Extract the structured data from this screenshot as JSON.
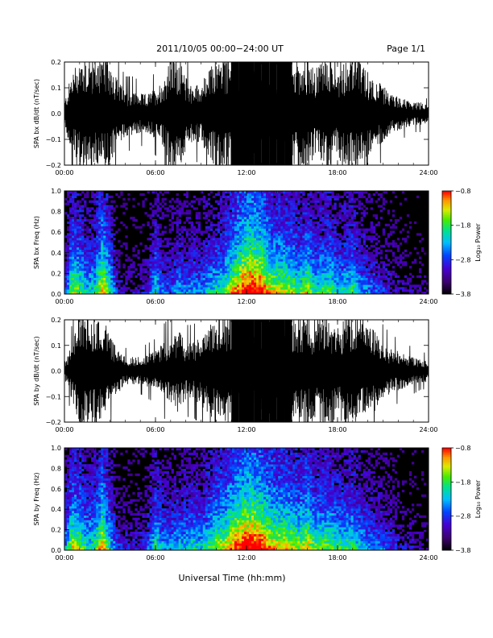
{
  "header": {
    "title": "2011/10/05   00:00−24:00  UT",
    "page": "Page 1/1"
  },
  "xlabel": "Universal Time (hh:mm)",
  "colorbar_label": "Log₁₀ Power",
  "chart_data": [
    {
      "type": "line",
      "ylabel": "SPA bx dB/dt (nT/sec)",
      "xlim": [
        0,
        24
      ],
      "ylim": [
        -0.2,
        0.2
      ],
      "x_tick_labels": [
        "00:00",
        "06:00",
        "12:00",
        "18:00",
        "24:00"
      ],
      "y_tick_labels": [
        "−0.2",
        "−0.1",
        "0.0",
        "0.1",
        "0.2"
      ],
      "envelope": {
        "hour": [
          0,
          0.5,
          1,
          1.5,
          2,
          2.5,
          3,
          3.5,
          4,
          4.5,
          5,
          5.5,
          6,
          6.5,
          7,
          7.5,
          8,
          8.5,
          9,
          9.5,
          10,
          10.5,
          11,
          11.5,
          12,
          12.5,
          13,
          13.5,
          14,
          14.5,
          15,
          15.5,
          16,
          16.5,
          17,
          17.5,
          18,
          18.5,
          19,
          19.5,
          20,
          20.5,
          21,
          21.5,
          22,
          22.5,
          23,
          23.5,
          24
        ],
        "amplitude": [
          0.04,
          0.15,
          0.2,
          0.2,
          0.2,
          0.2,
          0.2,
          0.12,
          0.08,
          0.08,
          0.07,
          0.07,
          0.09,
          0.12,
          0.2,
          0.2,
          0.13,
          0.1,
          0.11,
          0.15,
          0.2,
          0.2,
          0.2,
          0.2,
          0.2,
          0.2,
          0.2,
          0.2,
          0.2,
          0.2,
          0.2,
          0.2,
          0.2,
          0.15,
          0.2,
          0.2,
          0.15,
          0.2,
          0.2,
          0.18,
          0.15,
          0.12,
          0.1,
          0.07,
          0.06,
          0.05,
          0.04,
          0.04,
          0.03
        ]
      }
    },
    {
      "type": "heatmap",
      "ylabel": "SPA bx Freq (Hz)",
      "xlim": [
        0,
        24
      ],
      "ylim": [
        0,
        1.0
      ],
      "x_tick_labels": [
        "00:00",
        "06:00",
        "12:00",
        "18:00",
        "24:00"
      ],
      "y_tick_labels": [
        "0.0",
        "0.2",
        "0.4",
        "0.6",
        "0.8",
        "1.0"
      ],
      "colorbar": {
        "min": -3.8,
        "max": -0.8,
        "tick_labels": [
          "−3.8",
          "−2.8",
          "−1.8",
          "−0.8"
        ]
      },
      "activity": {
        "hour": [
          0,
          0.5,
          1,
          1.5,
          2,
          2.5,
          3,
          3.5,
          4,
          4.5,
          5,
          5.5,
          6,
          6.5,
          7,
          7.5,
          8,
          8.5,
          9,
          9.5,
          10,
          10.5,
          11,
          11.5,
          12,
          12.5,
          13,
          13.5,
          14,
          14.5,
          15,
          15.5,
          16,
          16.5,
          17,
          17.5,
          18,
          18.5,
          19,
          19.5,
          20,
          20.5,
          21,
          21.5,
          22,
          22.5,
          23,
          23.5,
          24
        ],
        "level": [
          0.3,
          0.7,
          0.65,
          0.5,
          0.55,
          0.85,
          0.6,
          0.25,
          0.2,
          0.2,
          0.2,
          0.3,
          0.55,
          0.35,
          0.35,
          0.45,
          0.4,
          0.45,
          0.4,
          0.5,
          0.55,
          0.6,
          0.75,
          0.9,
          1.0,
          1.0,
          0.95,
          0.8,
          0.75,
          0.75,
          0.7,
          0.6,
          0.75,
          0.55,
          0.6,
          0.65,
          0.5,
          0.55,
          0.6,
          0.45,
          0.4,
          0.35,
          0.3,
          0.25,
          0.2,
          0.2,
          0.15,
          0.15,
          0.1
        ]
      }
    },
    {
      "type": "line",
      "ylabel": "SPA by dB/dt (nT/sec)",
      "xlim": [
        0,
        24
      ],
      "ylim": [
        -0.2,
        0.2
      ],
      "x_tick_labels": [
        "00:00",
        "06:00",
        "12:00",
        "18:00",
        "24:00"
      ],
      "y_tick_labels": [
        "−0.2",
        "−0.1",
        "0.0",
        "0.1",
        "0.2"
      ],
      "envelope": {
        "hour": [
          0,
          0.5,
          1,
          1.5,
          2,
          2.5,
          3,
          3.5,
          4,
          4.5,
          5,
          5.5,
          6,
          6.5,
          7,
          7.5,
          8,
          8.5,
          9,
          9.5,
          10,
          10.5,
          11,
          11.5,
          12,
          12.5,
          13,
          13.5,
          14,
          14.5,
          15,
          15.5,
          16,
          16.5,
          17,
          17.5,
          18,
          18.5,
          19,
          19.5,
          20,
          20.5,
          21,
          21.5,
          22,
          22.5,
          23,
          23.5,
          24
        ],
        "amplitude": [
          0.03,
          0.1,
          0.2,
          0.2,
          0.2,
          0.2,
          0.12,
          0.08,
          0.05,
          0.05,
          0.05,
          0.06,
          0.07,
          0.1,
          0.12,
          0.15,
          0.1,
          0.1,
          0.12,
          0.16,
          0.2,
          0.2,
          0.2,
          0.2,
          0.2,
          0.2,
          0.2,
          0.2,
          0.2,
          0.2,
          0.2,
          0.2,
          0.2,
          0.17,
          0.2,
          0.2,
          0.16,
          0.2,
          0.2,
          0.18,
          0.17,
          0.14,
          0.1,
          0.08,
          0.07,
          0.06,
          0.05,
          0.04,
          0.04
        ]
      }
    },
    {
      "type": "heatmap",
      "ylabel": "SPA by Freq (Hz)",
      "xlim": [
        0,
        24
      ],
      "ylim": [
        0,
        1.0
      ],
      "x_tick_labels": [
        "00:00",
        "06:00",
        "12:00",
        "18:00",
        "24:00"
      ],
      "y_tick_labels": [
        "0.0",
        "0.2",
        "0.4",
        "0.6",
        "0.8",
        "1.0"
      ],
      "colorbar": {
        "min": -3.8,
        "max": -0.8,
        "tick_labels": [
          "−3.8",
          "−2.8",
          "−1.8",
          "−0.8"
        ]
      },
      "activity": {
        "hour": [
          0,
          0.5,
          1,
          1.5,
          2,
          2.5,
          3,
          3.5,
          4,
          4.5,
          5,
          5.5,
          6,
          6.5,
          7,
          7.5,
          8,
          8.5,
          9,
          9.5,
          10,
          10.5,
          11,
          11.5,
          12,
          12.5,
          13,
          13.5,
          14,
          14.5,
          15,
          15.5,
          16,
          16.5,
          17,
          17.5,
          18,
          18.5,
          19,
          19.5,
          20,
          20.5,
          21,
          21.5,
          22,
          22.5,
          23,
          23.5,
          24
        ],
        "level": [
          0.4,
          0.75,
          0.7,
          0.55,
          0.6,
          0.85,
          0.55,
          0.3,
          0.25,
          0.25,
          0.25,
          0.35,
          0.6,
          0.45,
          0.45,
          0.5,
          0.5,
          0.55,
          0.5,
          0.6,
          0.7,
          0.75,
          0.85,
          0.95,
          1.0,
          1.0,
          0.95,
          0.85,
          0.8,
          0.8,
          0.75,
          0.7,
          0.8,
          0.65,
          0.65,
          0.7,
          0.6,
          0.6,
          0.6,
          0.5,
          0.45,
          0.4,
          0.35,
          0.3,
          0.25,
          0.2,
          0.2,
          0.15,
          0.1
        ]
      }
    }
  ]
}
